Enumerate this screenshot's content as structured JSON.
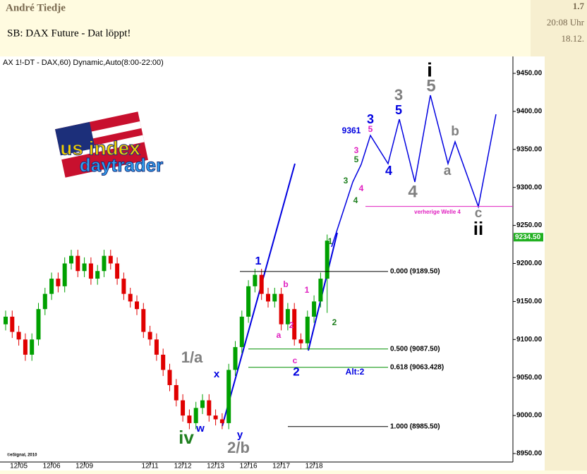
{
  "post": {
    "author": "André Tiedje",
    "subject": "SB: DAX Future - Dat löppt!",
    "number": "1.7",
    "time": "20:08 Uhr",
    "date": "18.12."
  },
  "chart_data": {
    "type": "candlestick",
    "title": "AX 1!-DT - DAX,60) Dynamic,Auto(8:00-22:00)",
    "categories": [
      null,
      null,
      "12/05",
      null,
      null,
      null,
      null,
      "12/06",
      null,
      null,
      null,
      null,
      "12/09",
      null,
      null,
      null,
      null,
      null,
      null,
      null,
      null,
      null,
      "12/11",
      null,
      null,
      null,
      null,
      "12/12",
      null,
      null,
      null,
      null,
      "12/13",
      null,
      null,
      null,
      null,
      "12/16",
      null,
      null,
      null,
      null,
      "12/17",
      null,
      null,
      null,
      null,
      "12/18",
      null,
      null
    ],
    "candles": {
      "open": [
        9120,
        9130,
        9110,
        9100,
        9080,
        9100,
        9140,
        9160,
        9180,
        9170,
        9200,
        9210,
        9190,
        9200,
        9180,
        9190,
        9210,
        9200,
        9180,
        9160,
        9150,
        9140,
        9110,
        9100,
        9080,
        9060,
        9040,
        9020,
        9000,
        8990,
        9010,
        9020,
        9000,
        8995,
        8990,
        9060,
        9090,
        9130,
        9170,
        9185,
        9160,
        9150,
        9160,
        9120,
        9140,
        9100,
        9095,
        9130,
        9150,
        9180
      ],
      "high": [
        9138,
        9138,
        9118,
        9108,
        9108,
        9148,
        9168,
        9188,
        9188,
        9208,
        9218,
        9218,
        9208,
        9208,
        9198,
        9218,
        9218,
        9208,
        9188,
        9168,
        9158,
        9148,
        9118,
        9108,
        9088,
        9068,
        9048,
        9028,
        9008,
        9018,
        9028,
        9028,
        9008,
        9003,
        9068,
        9098,
        9138,
        9178,
        9193,
        9193,
        9168,
        9168,
        9168,
        9148,
        9148,
        9108,
        9138,
        9158,
        9188,
        9238
      ],
      "low": [
        9112,
        9102,
        9092,
        9072,
        9072,
        9092,
        9132,
        9152,
        9162,
        9162,
        9192,
        9182,
        9182,
        9172,
        9172,
        9182,
        9192,
        9172,
        9152,
        9142,
        9132,
        9102,
        9092,
        9072,
        9052,
        9032,
        9012,
        8992,
        8982,
        8982,
        9002,
        8992,
        8987,
        8982,
        8982,
        9052,
        9082,
        9122,
        9162,
        9152,
        9142,
        9142,
        9112,
        9112,
        9092,
        9087,
        9087,
        9122,
        9142,
        9135
      ],
      "close": [
        9130,
        9110,
        9100,
        9080,
        9100,
        9140,
        9160,
        9180,
        9170,
        9200,
        9210,
        9190,
        9200,
        9180,
        9190,
        9210,
        9200,
        9180,
        9160,
        9150,
        9140,
        9110,
        9100,
        9080,
        9060,
        9040,
        9020,
        9000,
        8990,
        9010,
        9020,
        9000,
        8995,
        8990,
        9060,
        9090,
        9130,
        9170,
        9185,
        9160,
        9150,
        9160,
        9120,
        9140,
        9100,
        9095,
        9130,
        9150,
        9180,
        9230
      ]
    },
    "up_color": "#00a000",
    "down_color": "#e00000",
    "ylim": [
      8950,
      9450
    ],
    "yticks": [
      {
        "value": 8950,
        "label": "8950.00"
      },
      {
        "value": 9000,
        "label": "9000.00"
      },
      {
        "value": 9050,
        "label": "9050.00"
      },
      {
        "value": 9100,
        "label": "9100.00"
      },
      {
        "value": 9150,
        "label": "9150.00"
      },
      {
        "value": 9200,
        "label": "9200.00"
      },
      {
        "value": 9250,
        "label": "9250.00"
      },
      {
        "value": 9300,
        "label": "9300.00"
      },
      {
        "value": 9350,
        "label": "9350.00"
      },
      {
        "value": 9400,
        "label": "9400.00"
      },
      {
        "value": 9450,
        "label": "9450.00"
      }
    ],
    "fib_levels": [
      {
        "value": 9189.5,
        "label": "0.000 (9189.50)",
        "color": "#000000"
      },
      {
        "value": 9087.5,
        "label": "0.500 (9087.50)",
        "color": "#009000"
      },
      {
        "value": 9063.428,
        "label": "0.618 (9063.428)",
        "color": "#009000"
      },
      {
        "value": 8985.5,
        "label": "1.000 (8985.50)",
        "color": "#000000"
      }
    ],
    "prior_wave4": {
      "value": 9275,
      "label": "verherige Welle 4",
      "color": "#e020c0"
    },
    "last_price": {
      "value": 9234.5,
      "label": "9234.50"
    },
    "annotations": [
      "1/a",
      "x",
      "iv",
      "w",
      "y",
      "2/b",
      "1",
      "b",
      "a",
      "1",
      "2",
      "c",
      "2",
      "Alt:2",
      "1",
      "2",
      "3",
      "4",
      "5",
      "3",
      "4",
      "5",
      "3",
      "9361",
      "5",
      "3",
      "4",
      "4",
      "i",
      "5",
      "b",
      "a",
      "c",
      "ii",
      "©eSignal, 2010",
      "us index",
      "daytrader"
    ]
  }
}
